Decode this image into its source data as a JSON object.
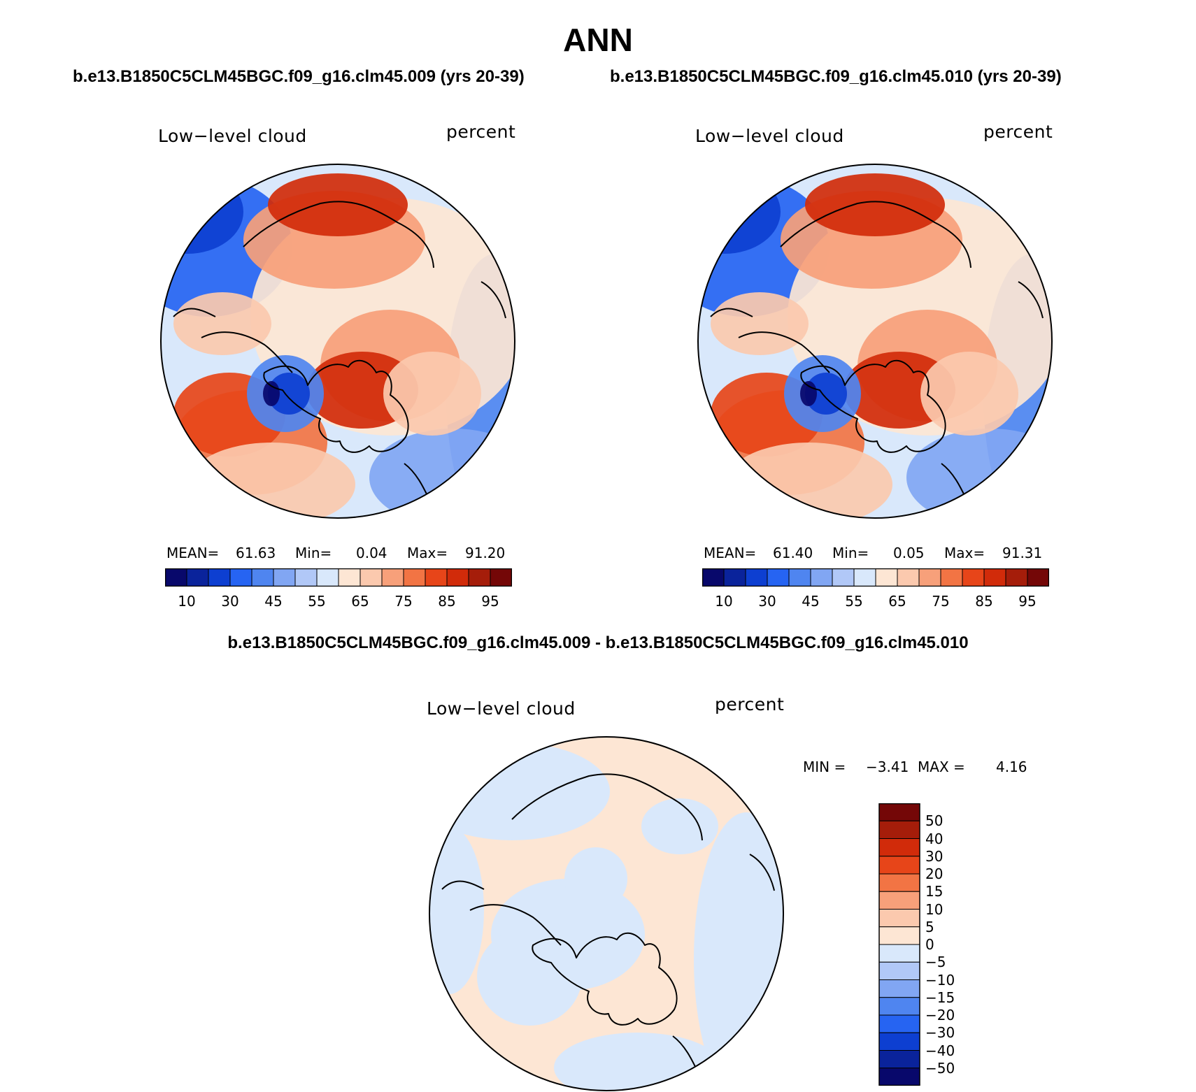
{
  "figure": {
    "season": "ANN",
    "case1_title": "b.e13.B1850C5CLM45BGC.f09_g16.clm45.009 (yrs 20-39)",
    "case2_title": "b.e13.B1850C5CLM45BGC.f09_g16.clm45.010 (yrs 20-39)",
    "diff_title": "b.e13.B1850C5CLM45BGC.f09_g16.clm45.009 - b.e13.B1850C5CLM45BGC.f09_g16.clm45.010"
  },
  "panel1": {
    "variable": "Low−level cloud",
    "units": "percent",
    "mean_label": "MEAN=",
    "mean": "61.63",
    "min_label": "Min=",
    "min": "0.04",
    "max_label": "Max=",
    "max": "91.20"
  },
  "panel2": {
    "variable": "Low−level cloud",
    "units": "percent",
    "mean_label": "MEAN=",
    "mean": "61.40",
    "min_label": "Min=",
    "min": "0.05",
    "max_label": "Max=",
    "max": "91.31"
  },
  "panel3": {
    "variable": "Low−level cloud",
    "units": "percent",
    "min_label": "MIN =",
    "min": "−3.41",
    "max_label": "MAX =",
    "max": "4.16"
  },
  "colorbar_abs": {
    "colors": [
      "#08086b",
      "#0a239b",
      "#0d3fd1",
      "#2664f2",
      "#4f85f0",
      "#81a6f3",
      "#b1c8f7",
      "#d9e8fb",
      "#fde6d4",
      "#fbc9ae",
      "#f7a07a",
      "#f27444",
      "#e74519",
      "#d12b0a",
      "#a51d0a",
      "#740707"
    ],
    "tick_labels": [
      "10",
      "30",
      "45",
      "55",
      "65",
      "75",
      "85",
      "95"
    ]
  },
  "colorbar_diff": {
    "colors_top_to_bottom": [
      "#740707",
      "#a51d0a",
      "#d12b0a",
      "#e74519",
      "#f27444",
      "#f7a07a",
      "#fbc9ae",
      "#fde6d4",
      "#d9e8fb",
      "#b1c8f7",
      "#81a6f3",
      "#4f85f0",
      "#2664f2",
      "#0d3fd1",
      "#0a239b",
      "#08086b"
    ],
    "tick_labels": [
      "50",
      "40",
      "30",
      "20",
      "15",
      "10",
      "5",
      "0",
      "−5",
      "−10",
      "−15",
      "−20",
      "−30",
      "−40",
      "−50"
    ]
  }
}
